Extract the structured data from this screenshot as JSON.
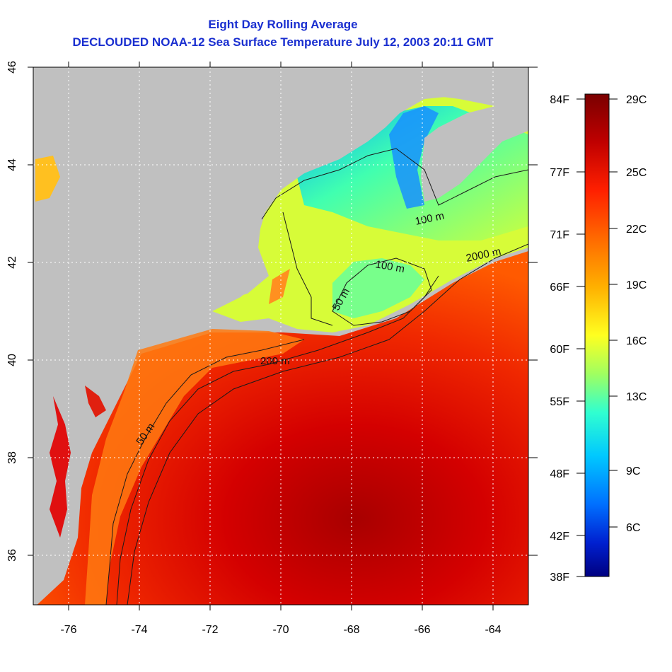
{
  "header": {
    "title": "Eight Day Rolling Average",
    "subtitle": "DECLOUDED NOAA-12 Sea Surface Temperature July 12, 2003 20:11 GMT"
  },
  "map": {
    "x_ticks": [
      "-76",
      "-74",
      "-72",
      "-70",
      "-68",
      "-66",
      "-64"
    ],
    "y_ticks": [
      "46",
      "44",
      "42",
      "40",
      "38",
      "36"
    ],
    "contour_labels": [
      "100 m",
      "2000 m",
      "100 m",
      "50 m",
      "200 m",
      "50 m"
    ],
    "land_color": "#c0c0c0"
  },
  "colorbar": {
    "fahrenheit_labels": [
      "84F",
      "77F",
      "71F",
      "66F",
      "60F",
      "55F",
      "48F",
      "42F",
      "38F"
    ],
    "celsius_labels": [
      "29C",
      "25C",
      "22C",
      "19C",
      "16C",
      "13C",
      "9C",
      "6C"
    ],
    "colors": [
      "#7a0000",
      "#c00000",
      "#ff2000",
      "#ff6a00",
      "#ffb000",
      "#ffff20",
      "#a0ff60",
      "#30ffd0",
      "#00c8ff",
      "#0070ff",
      "#0020d0",
      "#000080"
    ]
  }
}
